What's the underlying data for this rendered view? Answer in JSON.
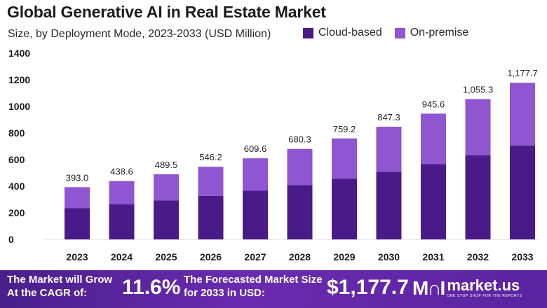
{
  "header": {
    "title": "Global Generative AI in Real Estate Market",
    "subtitle": "Size, by Deployment Mode, 2023-2033 (USD Million)"
  },
  "legend": [
    {
      "label": "Cloud-based",
      "color": "#4b1a89"
    },
    {
      "label": "On-premise",
      "color": "#9056d1"
    }
  ],
  "chart_data": {
    "type": "bar",
    "stacked": true,
    "title": "Global Generative AI in Real Estate Market",
    "subtitle": "Size, by Deployment Mode, 2023-2033 (USD Million)",
    "categories": [
      "2023",
      "2024",
      "2025",
      "2026",
      "2027",
      "2028",
      "2029",
      "2030",
      "2031",
      "2032",
      "2033"
    ],
    "series": [
      {
        "name": "Cloud-based",
        "color": "#4b1a89",
        "values": [
          235.8,
          263.2,
          293.7,
          327.7,
          365.8,
          408.2,
          455.5,
          508.4,
          567.4,
          633.2,
          706.6
        ]
      },
      {
        "name": "On-premise",
        "color": "#9056d1",
        "values": [
          157.2,
          175.4,
          195.8,
          218.5,
          243.8,
          272.1,
          303.7,
          338.9,
          378.2,
          422.1,
          471.1
        ]
      }
    ],
    "totals": [
      393.0,
      438.6,
      489.5,
      546.2,
      609.6,
      680.3,
      759.2,
      847.3,
      945.6,
      1055.3,
      1177.7
    ],
    "total_labels": [
      "393.0",
      "438.6",
      "489.5",
      "546.2",
      "609.6",
      "680.3",
      "759.2",
      "847.3",
      "945.6",
      "1,055.3",
      "1,177.7"
    ],
    "yticks": [
      "0",
      "200",
      "400",
      "600",
      "800",
      "1000",
      "1200",
      "1400"
    ],
    "ylim": [
      0,
      1400
    ],
    "xlabel": "",
    "ylabel": "",
    "grid": false,
    "legend_position": "top-right"
  },
  "footer": {
    "cagr_label": "The Market will Grow At the CAGR of:",
    "cagr_value": "11.6%",
    "forecast_label": "The Forecasted Market Size for 2033 in USD:",
    "forecast_value": "$1,177.7",
    "brand_mark": "M∩I",
    "brand_name": "market.us",
    "brand_tagline": "ONE STOP SHOP FOR THE REPORTS"
  }
}
